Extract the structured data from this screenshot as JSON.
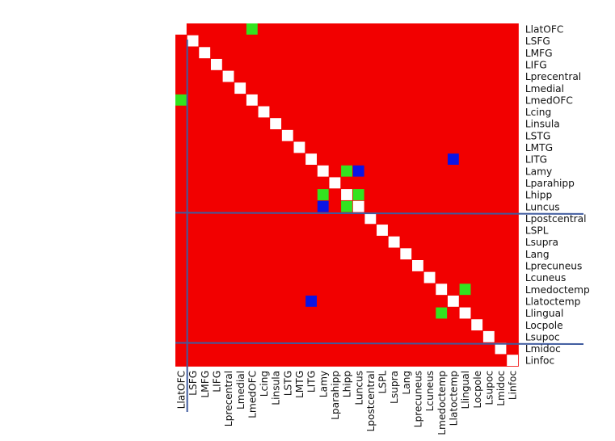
{
  "chart_data": {
    "type": "heatmap",
    "title": "",
    "xlabel": "",
    "ylabel": "",
    "regions": [
      "LlatOFC",
      "LSFG",
      "LMFG",
      "LIFG",
      "Lprecentral",
      "Lmedial",
      "LmedOFC",
      "Lcing",
      "Linsula",
      "LSTG",
      "LMTG",
      "LITG",
      "Lamy",
      "Lparahipp",
      "Lhipp",
      "Luncus",
      "Lpostcentral",
      "LSPL",
      "Lsupra",
      "Lang",
      "Lprecuneus",
      "Lcuneus",
      "Lmedoctemp",
      "Llatoctemp",
      "Llingual",
      "Locpole",
      "Lsupoc",
      "Lmidoc",
      "Linfoc"
    ],
    "y_labels": [
      "LlatOFC",
      "LSFG",
      "LMFG",
      "LIFG",
      "Lprecentral",
      "Lmedial",
      "LmedOFC",
      "Lcing",
      "Linsula",
      "LSTG",
      "LMTG",
      "LITG",
      "Lamy",
      "Lparahipp",
      "Lhipp",
      "Luncus",
      "Lpostcentral",
      "LSPL",
      "Lsupra",
      "Lang",
      "Lprecuneus",
      "Lcuneus",
      "Lmedoctemp",
      "Llatoctemp",
      "Llingual",
      "Locpole",
      "Lsupoc",
      "Lmidoc",
      "Linfoc"
    ],
    "x_labels": [
      "LlatOFC",
      "LSFG",
      "LMFG",
      "LIFG",
      "Lprecentral",
      "Lmedial",
      "LmedOFC",
      "Lcing",
      "Linsula",
      "LSTG",
      "LMTG",
      "LITG",
      "Lamy",
      "Lparahipp",
      "Lhipp",
      "Luncus",
      "Lpostcentral",
      "LSPL",
      "Lsupra",
      "Lang",
      "Lprecuneus",
      "Lcuneus",
      "Lmedoctemp",
      "Llatoctemp",
      "Llingual",
      "Locpole",
      "Lsupoc",
      "Lmidoc",
      "Linfoc"
    ],
    "cell_states": {
      "background": "red",
      "diagonal": "white",
      "green": [
        [
          0,
          6
        ],
        [
          6,
          0
        ],
        [
          12,
          14
        ],
        [
          14,
          12
        ],
        [
          14,
          15
        ],
        [
          15,
          14
        ],
        [
          22,
          24
        ],
        [
          24,
          22
        ]
      ],
      "blue": [
        [
          11,
          23
        ],
        [
          12,
          15
        ],
        [
          15,
          12
        ],
        [
          23,
          11
        ]
      ]
    },
    "colors": {
      "background": "#f20000",
      "diagonal": "#ffffff",
      "green": "#33e31f",
      "blue": "#0a14e6",
      "divider": "#3f5b9f"
    },
    "dividers_after_index": [
      0,
      15,
      26
    ]
  }
}
